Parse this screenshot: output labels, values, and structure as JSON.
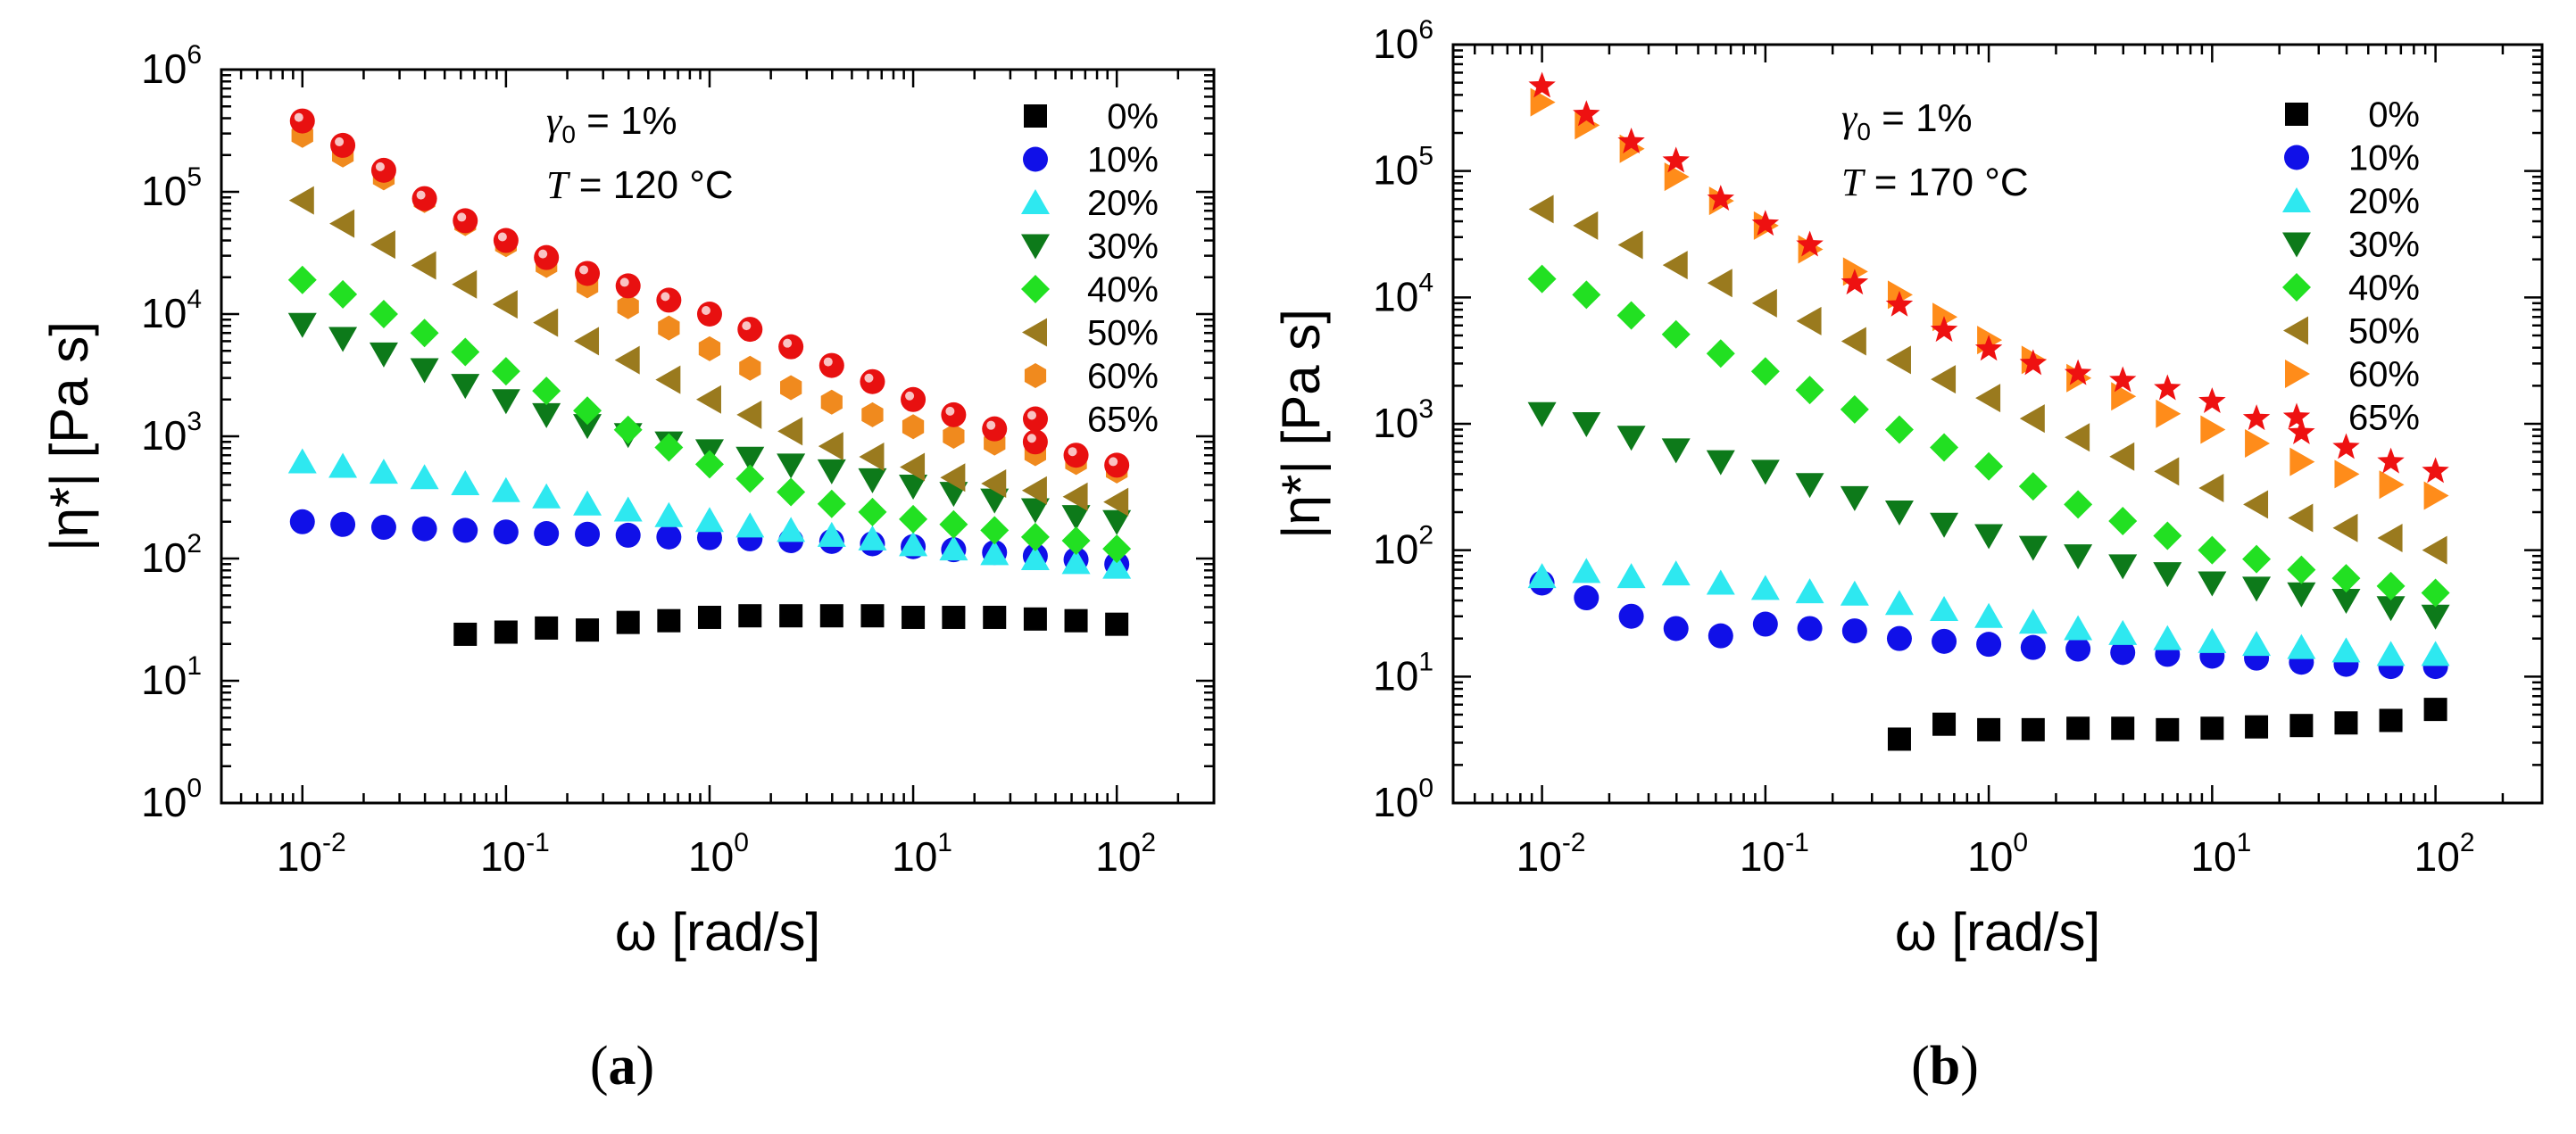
{
  "axes_common": {
    "xlabel": "ω [rad/s]",
    "ylabel": "|η*| [Pa s]",
    "xlim": [
      0.004,
      300
    ],
    "ylim": [
      1,
      1000000
    ],
    "x_ticks": [
      {
        "value": 0.01,
        "base": "10",
        "exp": "-2"
      },
      {
        "value": 0.1,
        "base": "10",
        "exp": "-1"
      },
      {
        "value": 1,
        "base": "10",
        "exp": "0"
      },
      {
        "value": 10,
        "base": "10",
        "exp": "1"
      },
      {
        "value": 100,
        "base": "10",
        "exp": "2"
      }
    ],
    "y_ticks": [
      {
        "value": 1,
        "base": "10",
        "exp": "0"
      },
      {
        "value": 10,
        "base": "10",
        "exp": "1"
      },
      {
        "value": 100,
        "base": "10",
        "exp": "2"
      },
      {
        "value": 1000,
        "base": "10",
        "exp": "3"
      },
      {
        "value": 10000,
        "base": "10",
        "exp": "4"
      },
      {
        "value": 100000,
        "base": "10",
        "exp": "5"
      },
      {
        "value": 1000000,
        "base": "10",
        "exp": "6"
      }
    ]
  },
  "colors": {
    "0%": "#000000",
    "10%": "#1010e8",
    "20%": "#2ee8f0",
    "30%": "#0d7a1a",
    "40%": "#22e022",
    "50%": "#9a7a1e",
    "60a": "#f08a1e",
    "60b": "#ff8c1a",
    "65a": "#e81010",
    "65b": "#ee1111"
  },
  "chart_data": [
    {
      "type": "scatter",
      "xscale": "log",
      "yscale": "log",
      "caption": "a",
      "xlabel": "ω [rad/s]",
      "ylabel": "|η*| [Pa s]",
      "annotation": {
        "strain_symbol": "γ",
        "strain_sub": "0",
        "strain_value": " = 1%",
        "temp_symbol": "T",
        "temp_value": " = 120 °C"
      },
      "legend_position": "top-right",
      "x": [
        0.01,
        0.0158,
        0.0251,
        0.0398,
        0.0631,
        0.1,
        0.158,
        0.251,
        0.398,
        0.631,
        1,
        1.58,
        2.51,
        3.98,
        6.31,
        10,
        15.8,
        25.1,
        39.8,
        63.1,
        100
      ],
      "series": [
        {
          "name": "0%",
          "marker": "square",
          "values": [
            null,
            null,
            null,
            null,
            24,
            25,
            27,
            26,
            30,
            31,
            33,
            34,
            34,
            34,
            34,
            33,
            33,
            33,
            32,
            31,
            29
          ]
        },
        {
          "name": "10%",
          "marker": "circle",
          "values": [
            200,
            190,
            180,
            175,
            170,
            165,
            160,
            158,
            155,
            150,
            148,
            145,
            140,
            138,
            132,
            125,
            118,
            112,
            105,
            98,
            90
          ]
        },
        {
          "name": "20%",
          "marker": "triangle-up",
          "values": [
            620,
            570,
            510,
            460,
            410,
            360,
            320,
            280,
            250,
            225,
            205,
            185,
            170,
            155,
            145,
            130,
            120,
            110,
            100,
            93,
            85
          ]
        },
        {
          "name": "30%",
          "marker": "triangle-down",
          "values": [
            8200,
            6300,
            4700,
            3500,
            2600,
            1950,
            1500,
            1220,
            1030,
            880,
            760,
            660,
            580,
            520,
            440,
            390,
            340,
            300,
            250,
            220,
            200
          ]
        },
        {
          "name": "40%",
          "marker": "diamond",
          "values": [
            19000,
            14500,
            10000,
            7000,
            4900,
            3400,
            2350,
            1620,
            1130,
            810,
            590,
            450,
            350,
            280,
            240,
            210,
            190,
            170,
            150,
            140,
            120
          ]
        },
        {
          "name": "50%",
          "marker": "triangle-left",
          "values": [
            85000,
            55000,
            37000,
            25000,
            17500,
            12000,
            8500,
            6000,
            4200,
            2900,
            2000,
            1500,
            1100,
            830,
            680,
            560,
            460,
            410,
            360,
            320,
            290
          ]
        },
        {
          "name": "60%",
          "marker": "hexagon",
          "values": [
            290000,
            200000,
            130000,
            85000,
            55000,
            37000,
            25000,
            17000,
            11500,
            7700,
            5200,
            3600,
            2500,
            1900,
            1500,
            1200,
            1000,
            880,
            720,
            610,
            520
          ]
        },
        {
          "name": "65%",
          "marker": "ball",
          "values": [
            380000,
            240000,
            150000,
            88000,
            58000,
            40000,
            29000,
            21500,
            17000,
            13000,
            10000,
            7500,
            5400,
            3800,
            2800,
            2000,
            1500,
            1150,
            900,
            700,
            580
          ]
        }
      ]
    },
    {
      "type": "scatter",
      "xscale": "log",
      "yscale": "log",
      "caption": "b",
      "xlabel": "ω [rad/s]",
      "ylabel": "|η*| [Pa s]",
      "annotation": {
        "strain_symbol": "γ",
        "strain_sub": "0",
        "strain_value": " = 1%",
        "temp_symbol": "T",
        "temp_value": " = 170 °C"
      },
      "legend_position": "top-right",
      "x": [
        0.01,
        0.0158,
        0.0251,
        0.0398,
        0.0631,
        0.1,
        0.158,
        0.251,
        0.398,
        0.631,
        1,
        1.58,
        2.51,
        3.98,
        6.31,
        10,
        15.8,
        25.1,
        39.8,
        63.1,
        100
      ],
      "series": [
        {
          "name": "0%",
          "marker": "square",
          "values": [
            null,
            null,
            null,
            null,
            null,
            null,
            null,
            null,
            3.2,
            4.2,
            3.8,
            3.8,
            3.9,
            3.9,
            3.8,
            3.9,
            4.0,
            4.1,
            4.3,
            4.5,
            5.5
          ]
        },
        {
          "name": "10%",
          "marker": "circle",
          "values": [
            55,
            42,
            30,
            24,
            21,
            26,
            24,
            23,
            20,
            19,
            18,
            17,
            16.5,
            15.5,
            15,
            14.5,
            14,
            13,
            12.5,
            12,
            12
          ]
        },
        {
          "name": "20%",
          "marker": "triangle-up",
          "values": [
            62,
            68,
            62,
            65,
            55,
            50,
            47,
            45,
            38,
            34,
            30,
            27,
            24,
            22,
            20,
            19,
            18,
            17,
            16,
            15,
            15
          ]
        },
        {
          "name": "30%",
          "marker": "triangle-down",
          "values": [
            1200,
            1000,
            780,
            620,
            500,
            420,
            330,
            260,
            200,
            160,
            130,
            105,
            90,
            75,
            65,
            55,
            50,
            45,
            40,
            35,
            30
          ]
        },
        {
          "name": "40%",
          "marker": "diamond",
          "values": [
            14000,
            10500,
            7200,
            5100,
            3600,
            2600,
            1850,
            1300,
            900,
            650,
            460,
            320,
            230,
            170,
            130,
            100,
            85,
            70,
            60,
            52,
            46
          ]
        },
        {
          "name": "50%",
          "marker": "triangle-left",
          "values": [
            50000,
            37000,
            26000,
            18000,
            13000,
            9000,
            6500,
            4500,
            3200,
            2250,
            1600,
            1100,
            780,
            550,
            420,
            310,
            230,
            180,
            150,
            125,
            100
          ]
        },
        {
          "name": "60%",
          "marker": "triangle-right",
          "values": [
            350000,
            230000,
            150000,
            90000,
            58000,
            37000,
            24000,
            16000,
            10500,
            7000,
            4600,
            3200,
            2300,
            1650,
            1200,
            900,
            700,
            500,
            400,
            330,
            270
          ]
        },
        {
          "name": "65%",
          "marker": "star",
          "values": [
            470000,
            280000,
            170000,
            120000,
            60000,
            38000,
            26000,
            13000,
            8700,
            5500,
            3900,
            3000,
            2500,
            2200,
            1900,
            1500,
            1100,
            850,
            650,
            500,
            420
          ]
        }
      ]
    }
  ]
}
